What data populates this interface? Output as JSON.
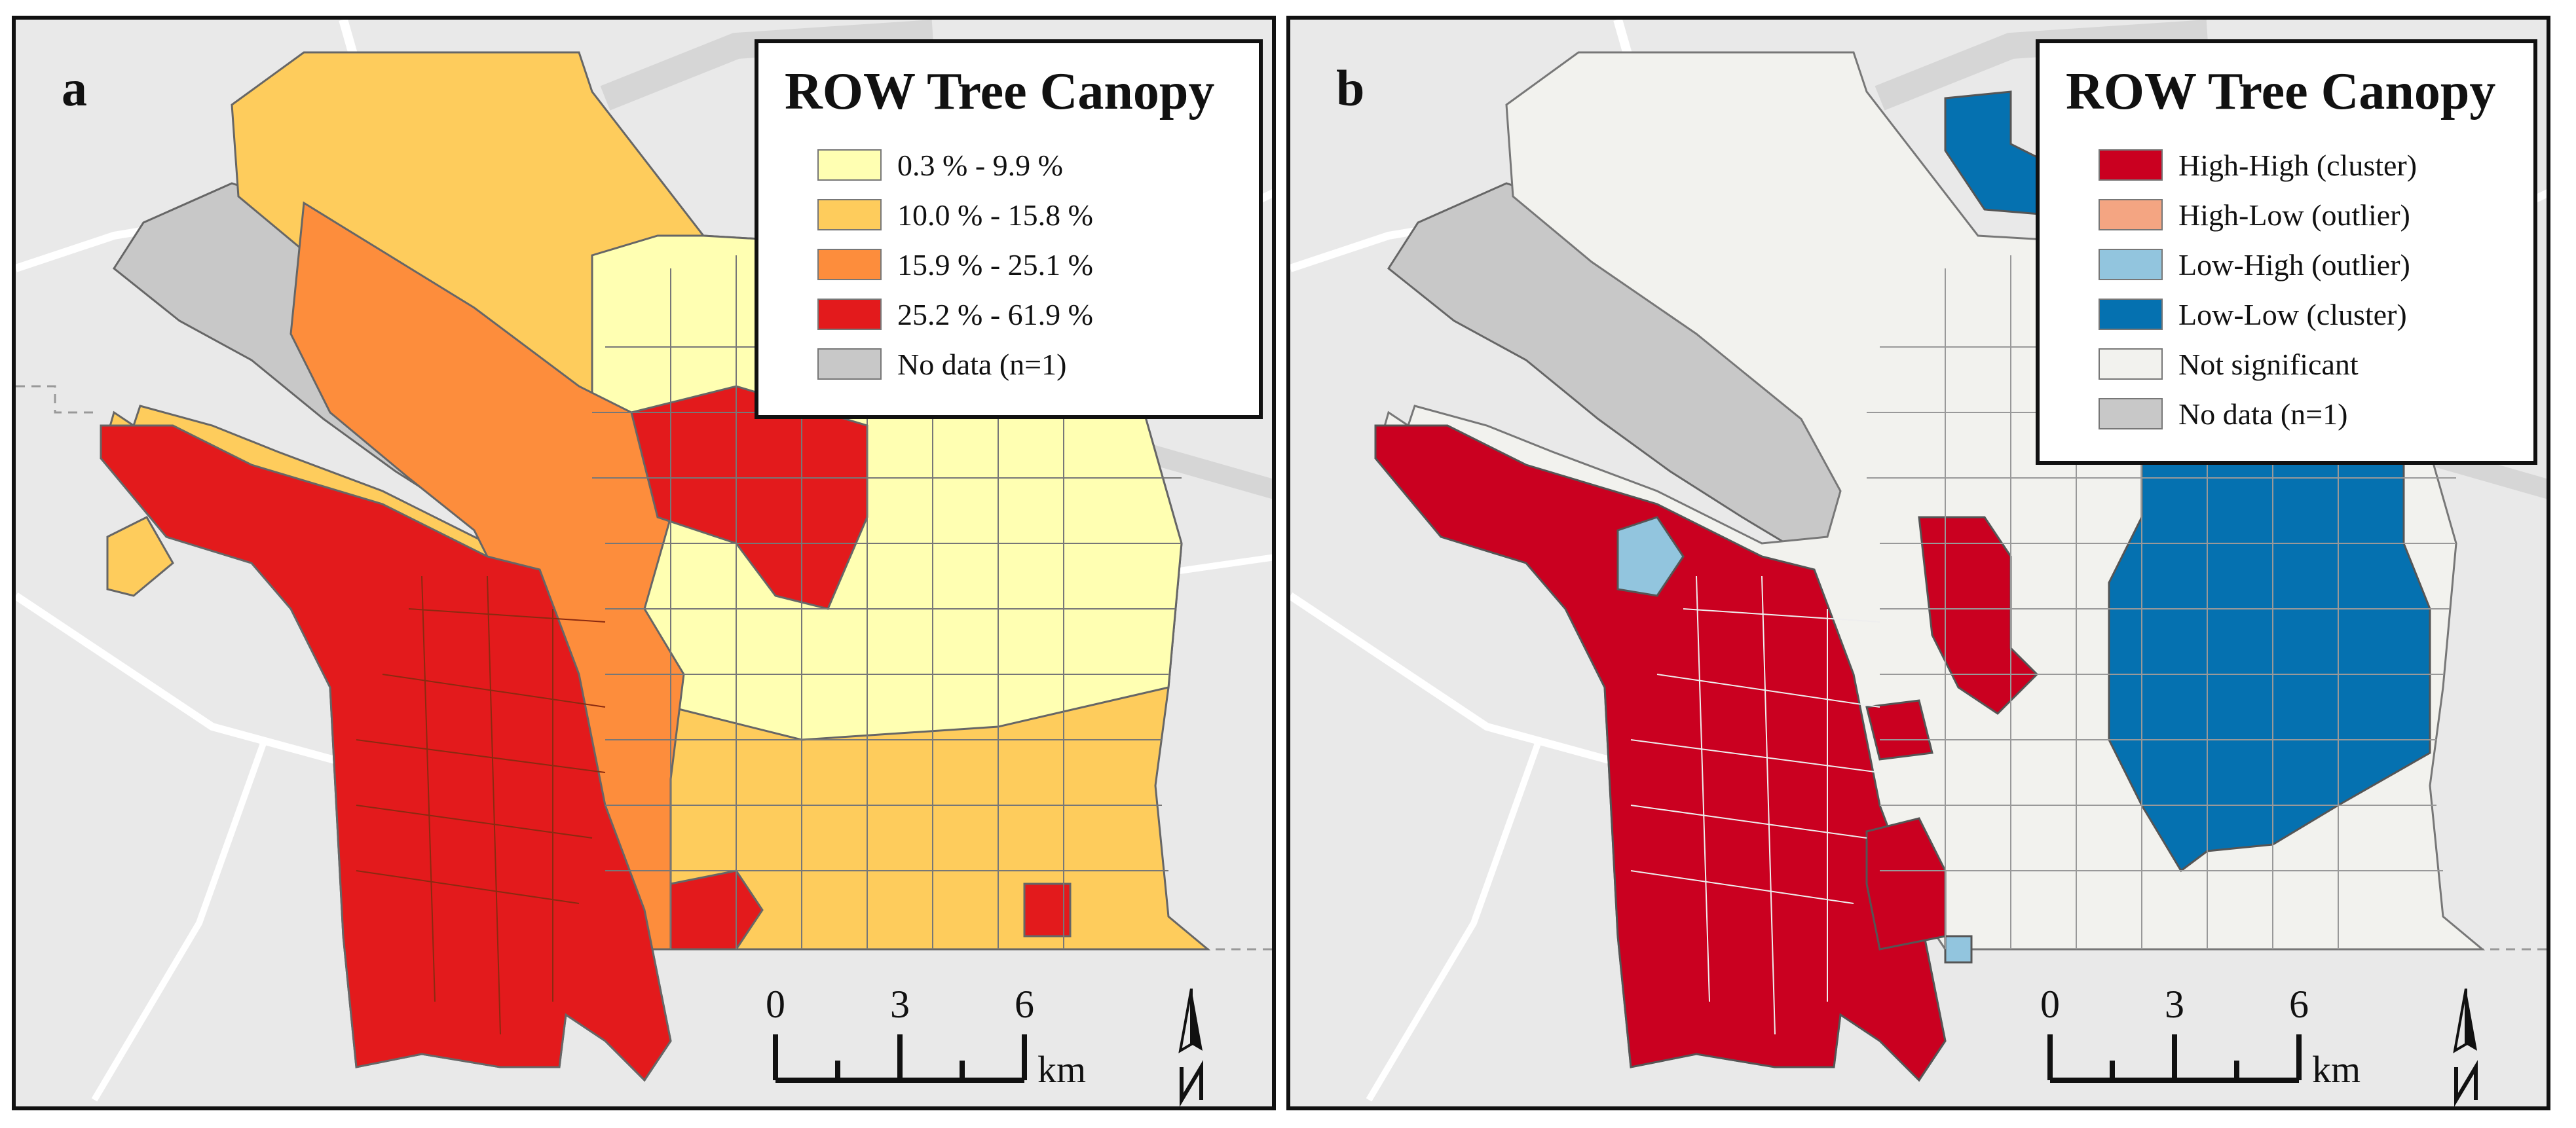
{
  "panels": [
    {
      "letter": "a",
      "legend": {
        "title": "ROW Tree Canopy",
        "items": [
          {
            "label": "0.3 % - 9.9 %",
            "color": "#ffffb2"
          },
          {
            "label": "10.0 % - 15.8 %",
            "color": "#fecc5c"
          },
          {
            "label": "15.9 % - 25.1 %",
            "color": "#fd8d3c"
          },
          {
            "label": "25.2 % - 61.9 %",
            "color": "#e31a1c"
          },
          {
            "label": "No data (n=1)",
            "color": "#c8c8c8"
          }
        ]
      },
      "scalebar": {
        "ticks": [
          "0",
          "3",
          "6"
        ],
        "unit": "km"
      }
    },
    {
      "letter": "b",
      "legend": {
        "title": "ROW Tree Canopy",
        "items": [
          {
            "label": "High-High (cluster)",
            "color": "#ca0020"
          },
          {
            "label": "High-Low (outlier)",
            "color": "#f4a582"
          },
          {
            "label": "Low-High (outlier)",
            "color": "#92c5de"
          },
          {
            "label": "Low-Low (cluster)",
            "color": "#0571b0"
          },
          {
            "label": "Not significant",
            "color": "#f2f2ee"
          },
          {
            "label": "No data (n=1)",
            "color": "#c8c8c8"
          }
        ]
      },
      "scalebar": {
        "ticks": [
          "0",
          "3",
          "6"
        ],
        "unit": "km"
      }
    }
  ]
}
